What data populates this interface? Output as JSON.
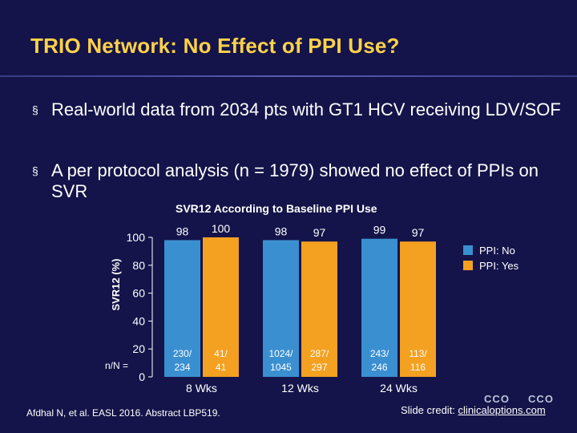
{
  "slide": {
    "title": "TRIO Network: No Effect of PPI Use?",
    "bullet_mark": "§",
    "bullets": [
      "Real-world data from 2034 pts with GT1 HCV receiving LDV/SOF",
      "A per protocol analysis (n = 1979) showed no effect of PPIs on SVR"
    ],
    "footnote": "Afdhal N, et al. EASL 2016. Abstract LBP519.",
    "credit_label": "Slide credit: ",
    "credit_link": "clinicaloptions.com",
    "logo_text": "CCO"
  },
  "colors": {
    "background": "#14144a",
    "title": "#ffd24a",
    "ppi_no": "#3a8fd0",
    "ppi_yes": "#f4a020",
    "axis": "#ffffff"
  },
  "chart_data": {
    "type": "bar",
    "title": "SVR12 According to Baseline PPI Use",
    "ylabel": "SVR12 (%)",
    "ylim": [
      0,
      100
    ],
    "yticks": [
      0,
      20,
      40,
      60,
      80,
      100
    ],
    "categories": [
      "8 Wks",
      "12 Wks",
      "24 Wks"
    ],
    "series": [
      {
        "name": "PPI: No",
        "values": [
          98,
          98,
          99
        ],
        "fractions": [
          "230/ 234",
          "1024/ 1045",
          "243/ 246"
        ]
      },
      {
        "name": "PPI: Yes",
        "values": [
          100,
          97,
          97
        ],
        "fractions": [
          "41/ 41",
          "287/ 297",
          "113/ 116"
        ]
      }
    ],
    "fraction_label": "n/N =",
    "legend_position": "right"
  }
}
